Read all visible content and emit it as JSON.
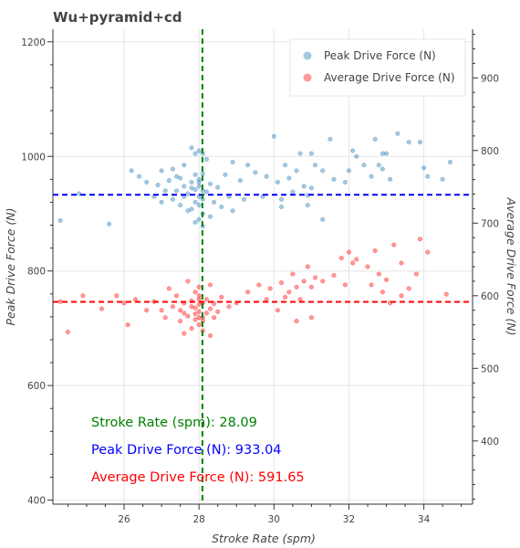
{
  "chart_data": {
    "type": "scatter",
    "title": "Wu+pyramid+cd",
    "xlabel": "Stroke Rate (spm)",
    "ylabel": "Peak Drive Force (N)",
    "y2label": "Average Drive Force (N)",
    "xlim": [
      24.1,
      35.3
    ],
    "ylim": [
      393,
      1222
    ],
    "y2lim": [
      313,
      967
    ],
    "x_ticks": [
      26,
      28,
      30,
      32,
      34
    ],
    "y_ticks": [
      400,
      600,
      800,
      1000,
      1200
    ],
    "y2_ticks": [
      400,
      500,
      600,
      700,
      800,
      900
    ],
    "grid": true,
    "legend_position": "top-right",
    "series": [
      {
        "name": "Peak Drive Force (N)",
        "axis": "left",
        "color": "#1f77b4",
        "points": [
          [
            27.2,
            958
          ],
          [
            27.5,
            962
          ],
          [
            27.8,
            955
          ],
          [
            27.9,
            968
          ],
          [
            28.0,
            960
          ],
          [
            28.1,
            970
          ],
          [
            27.6,
            948
          ],
          [
            28.3,
            952
          ],
          [
            28.5,
            946
          ],
          [
            27.4,
            940
          ],
          [
            27.7,
            935
          ],
          [
            28.0,
            930
          ],
          [
            28.2,
            938
          ],
          [
            28.1,
            925
          ],
          [
            27.9,
            920
          ],
          [
            28.0,
            915
          ],
          [
            27.8,
            908
          ],
          [
            28.1,
            900
          ],
          [
            28.0,
            890
          ],
          [
            27.9,
            885
          ],
          [
            28.1,
            878
          ],
          [
            27.6,
            930
          ],
          [
            27.3,
            925
          ],
          [
            27.0,
            920
          ],
          [
            26.8,
            930
          ],
          [
            27.5,
            915
          ],
          [
            27.7,
            905
          ],
          [
            28.4,
            920
          ],
          [
            28.6,
            912
          ],
          [
            28.8,
            930
          ],
          [
            28.3,
            895
          ],
          [
            27.9,
            942
          ],
          [
            28.0,
            948
          ],
          [
            28.1,
            940
          ],
          [
            27.8,
            945
          ],
          [
            28.0,
            955
          ],
          [
            27.4,
            965
          ],
          [
            26.9,
            950
          ],
          [
            27.1,
            940
          ],
          [
            26.6,
            955
          ],
          [
            26.4,
            965
          ],
          [
            27.0,
            975
          ],
          [
            27.6,
            985
          ],
          [
            27.9,
            1005
          ],
          [
            28.2,
            995
          ],
          [
            28.0,
            1010
          ],
          [
            27.3,
            978
          ],
          [
            28.7,
            968
          ],
          [
            28.9,
            990
          ],
          [
            29.3,
            985
          ],
          [
            29.5,
            972
          ],
          [
            29.8,
            965
          ],
          [
            29.1,
            958
          ],
          [
            30.1,
            955
          ],
          [
            30.4,
            962
          ],
          [
            30.6,
            975
          ],
          [
            30.8,
            948
          ],
          [
            30.5,
            938
          ],
          [
            30.9,
            932
          ],
          [
            31.0,
            945
          ],
          [
            30.2,
            925
          ],
          [
            30.0,
            1035
          ],
          [
            30.7,
            1005
          ],
          [
            31.0,
            1005
          ],
          [
            31.1,
            985
          ],
          [
            30.3,
            985
          ],
          [
            31.3,
            975
          ],
          [
            31.6,
            960
          ],
          [
            31.9,
            955
          ],
          [
            32.0,
            975
          ],
          [
            32.2,
            1000
          ],
          [
            32.4,
            985
          ],
          [
            32.6,
            965
          ],
          [
            32.9,
            978
          ],
          [
            32.8,
            985
          ],
          [
            33.1,
            960
          ],
          [
            33.3,
            1040
          ],
          [
            33.0,
            1005
          ],
          [
            32.7,
            1030
          ],
          [
            32.9,
            1005
          ],
          [
            33.6,
            1025
          ],
          [
            33.9,
            1025
          ],
          [
            34.0,
            980
          ],
          [
            34.1,
            965
          ],
          [
            34.7,
            990
          ],
          [
            34.5,
            960
          ],
          [
            32.1,
            1010
          ],
          [
            31.5,
            1030
          ],
          [
            30.9,
            915
          ],
          [
            31.3,
            890
          ],
          [
            30.2,
            912
          ],
          [
            29.7,
            930
          ],
          [
            29.2,
            925
          ],
          [
            28.9,
            905
          ],
          [
            26.2,
            975
          ],
          [
            25.6,
            882
          ],
          [
            24.3,
            888
          ],
          [
            24.8,
            935
          ],
          [
            27.8,
            1015
          ],
          [
            28.1,
            1005
          ]
        ]
      },
      {
        "name": "Average Drive Force (N)",
        "axis": "right",
        "color": "#ff0000",
        "points": [
          [
            27.5,
            580
          ],
          [
            27.8,
            585
          ],
          [
            28.0,
            578
          ],
          [
            28.1,
            590
          ],
          [
            27.9,
            575
          ],
          [
            28.0,
            570
          ],
          [
            28.1,
            565
          ],
          [
            27.7,
            572
          ],
          [
            27.6,
            590
          ],
          [
            27.3,
            585
          ],
          [
            27.0,
            580
          ],
          [
            26.8,
            592
          ],
          [
            28.3,
            582
          ],
          [
            28.5,
            578
          ],
          [
            28.2,
            595
          ],
          [
            28.0,
            600
          ],
          [
            27.9,
            605
          ],
          [
            27.4,
            600
          ],
          [
            27.2,
            610
          ],
          [
            28.6,
            598
          ],
          [
            28.8,
            585
          ],
          [
            29.0,
            590
          ],
          [
            28.4,
            570
          ],
          [
            28.0,
            560
          ],
          [
            27.8,
            555
          ],
          [
            28.1,
            552
          ],
          [
            27.5,
            565
          ],
          [
            27.1,
            570
          ],
          [
            26.6,
            580
          ],
          [
            26.3,
            595
          ],
          [
            26.0,
            590
          ],
          [
            25.8,
            600
          ],
          [
            28.0,
            612
          ],
          [
            28.3,
            615
          ],
          [
            27.7,
            620
          ],
          [
            29.3,
            605
          ],
          [
            29.6,
            615
          ],
          [
            29.9,
            610
          ],
          [
            30.2,
            618
          ],
          [
            30.4,
            605
          ],
          [
            30.6,
            612
          ],
          [
            30.8,
            620
          ],
          [
            30.5,
            630
          ],
          [
            30.9,
            640
          ],
          [
            31.1,
            625
          ],
          [
            30.3,
            598
          ],
          [
            30.7,
            595
          ],
          [
            31.3,
            620
          ],
          [
            31.6,
            628
          ],
          [
            31.9,
            615
          ],
          [
            32.1,
            645
          ],
          [
            32.2,
            650
          ],
          [
            32.5,
            640
          ],
          [
            32.8,
            630
          ],
          [
            33.0,
            622
          ],
          [
            32.6,
            615
          ],
          [
            32.9,
            605
          ],
          [
            33.1,
            590
          ],
          [
            33.4,
            600
          ],
          [
            33.6,
            610
          ],
          [
            33.8,
            630
          ],
          [
            33.4,
            645
          ],
          [
            32.7,
            662
          ],
          [
            33.2,
            670
          ],
          [
            33.9,
            678
          ],
          [
            34.1,
            660
          ],
          [
            34.6,
            602
          ],
          [
            32.0,
            660
          ],
          [
            31.8,
            652
          ],
          [
            31.0,
            612
          ],
          [
            30.1,
            580
          ],
          [
            30.6,
            565
          ],
          [
            31.0,
            570
          ],
          [
            29.8,
            595
          ],
          [
            28.3,
            545
          ],
          [
            27.6,
            548
          ],
          [
            26.1,
            560
          ],
          [
            25.4,
            582
          ],
          [
            24.5,
            550
          ],
          [
            24.3,
            592
          ],
          [
            24.9,
            600
          ],
          [
            28.0,
            588
          ],
          [
            27.9,
            583
          ],
          [
            28.2,
            576
          ],
          [
            28.1,
            570
          ],
          [
            27.8,
            593
          ],
          [
            27.6,
            576
          ],
          [
            28.4,
            589
          ],
          [
            28.0,
            595
          ],
          [
            27.9,
            567
          ]
        ]
      }
    ],
    "reference_lines": {
      "stroke_rate": 28.09,
      "peak_drive_force": 933.04,
      "average_drive_force": 591.65
    },
    "annotations": [
      {
        "id": "stroke",
        "label": "Stroke Rate (spm):  28.09",
        "color": "#008000"
      },
      {
        "id": "peak",
        "label": "Peak Drive Force (N): 933.04",
        "color": "#0000ff"
      },
      {
        "id": "avg",
        "label": "Average Drive Force (N): 591.65",
        "color": "#ff0000"
      }
    ]
  }
}
